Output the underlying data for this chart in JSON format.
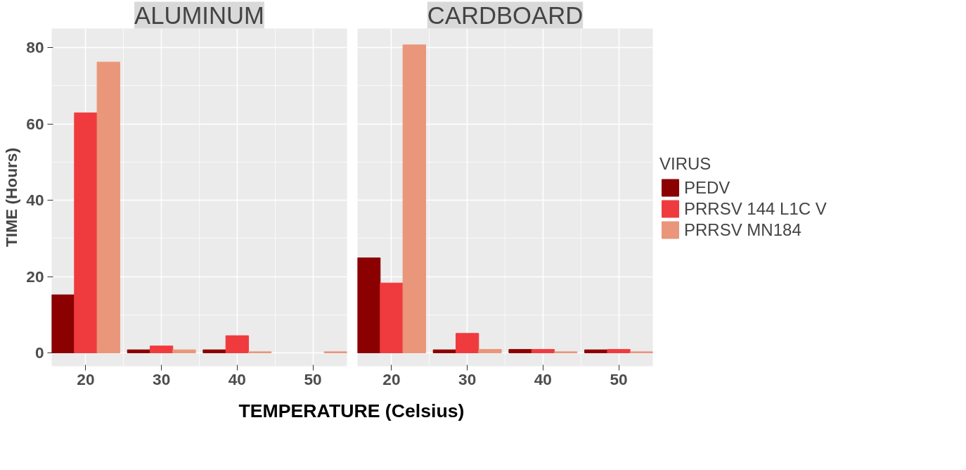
{
  "chart_data": [
    {
      "type": "bar",
      "title": "ALUMINUM",
      "x": [
        20,
        30,
        40,
        50
      ],
      "xlim": [
        15.5,
        54.5
      ],
      "xticks": [
        20,
        30,
        40,
        50
      ],
      "ylim": [
        -3.5,
        85
      ],
      "yticks": [
        0,
        20,
        40,
        60,
        80
      ],
      "ylabel": "TIME (Hours)",
      "xlabel": "TEMPERATURE (Celsius)",
      "grid": true,
      "legend": false,
      "series": [
        {
          "color": "#8b0000",
          "values": [
            15.2,
            0.8,
            0.8,
            null
          ]
        },
        {
          "color": "#ef3b3e",
          "values": [
            62.9,
            1.8,
            4.5,
            null
          ]
        },
        {
          "color": "#e9967a",
          "values": [
            76.2,
            0.8,
            0.3,
            0.3
          ]
        }
      ]
    },
    {
      "type": "bar",
      "title": "CARDBOARD",
      "x": [
        20,
        30,
        40,
        50
      ],
      "xlim": [
        15.5,
        54.5
      ],
      "xticks": [
        20,
        30,
        40,
        50
      ],
      "ylim": [
        -3.5,
        85
      ],
      "yticks": [
        0,
        20,
        40,
        60,
        80
      ],
      "tick_labels": "x",
      "grid": true,
      "legend": "right",
      "legend_title": "VIRUS",
      "series": [
        {
          "name": "PEDV",
          "color": "#8b0000",
          "values": [
            24.9,
            0.8,
            0.9,
            0.8
          ]
        },
        {
          "name": "PRRSV 144 L1C V",
          "color": "#ef3b3e",
          "values": [
            18.3,
            5.1,
            0.9,
            0.9
          ]
        },
        {
          "name": "PRRSV MN184",
          "color": "#e9967a",
          "values": [
            80.7,
            0.9,
            0.3,
            0.3
          ]
        }
      ]
    }
  ]
}
